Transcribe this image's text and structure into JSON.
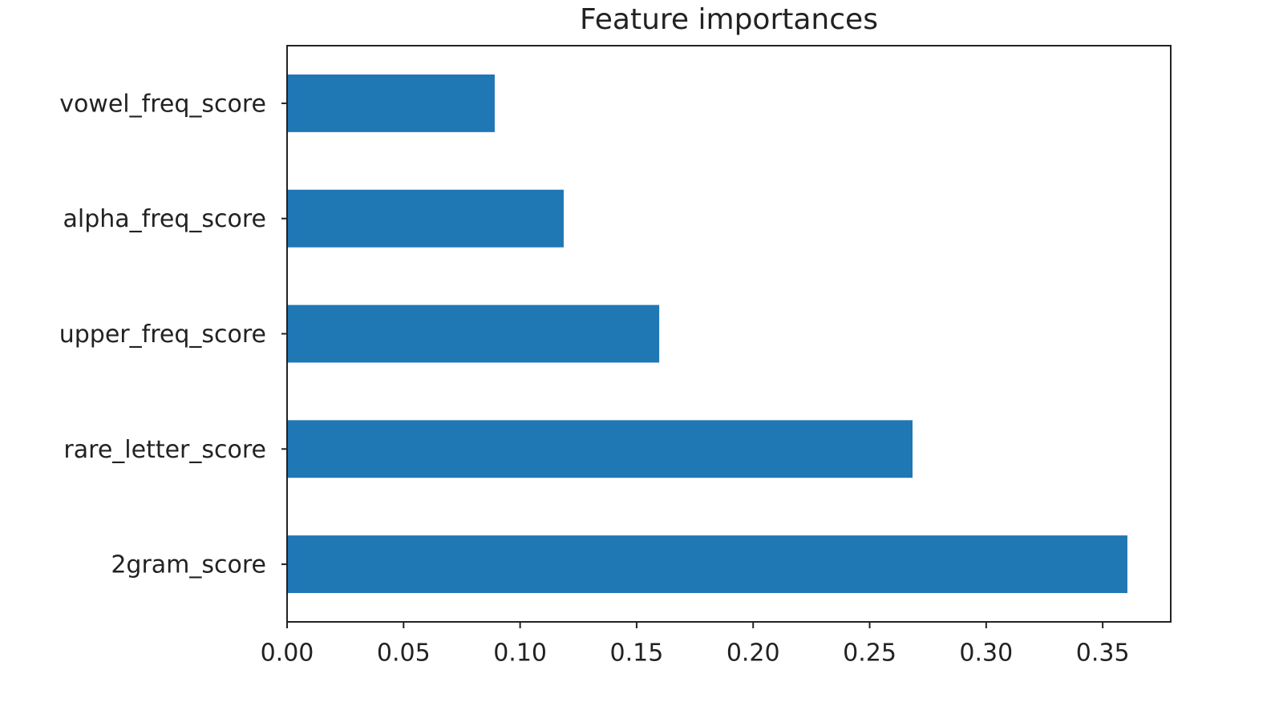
{
  "chart_data": {
    "type": "barh",
    "title": "Feature importances",
    "categories": [
      "vowel_freq_score",
      "alpha_freq_score",
      "upper_freq_score",
      "rare_letter_score",
      "2gram_score"
    ],
    "values": [
      0.0891,
      0.1187,
      0.1597,
      0.2684,
      0.3606
    ],
    "color": "#1f77b4",
    "xlim": [
      0,
      0.3792
    ],
    "xticks": [
      {
        "value": 0,
        "label": "0.00"
      },
      {
        "value": 0.05,
        "label": "0.05"
      },
      {
        "value": 0.1,
        "label": "0.10"
      },
      {
        "value": 0.15,
        "label": "0.15"
      },
      {
        "value": 0.2,
        "label": "0.20"
      },
      {
        "value": 0.25,
        "label": "0.25"
      },
      {
        "value": 0.3,
        "label": "0.30"
      },
      {
        "value": 0.35,
        "label": "0.35"
      }
    ],
    "grid": false
  }
}
